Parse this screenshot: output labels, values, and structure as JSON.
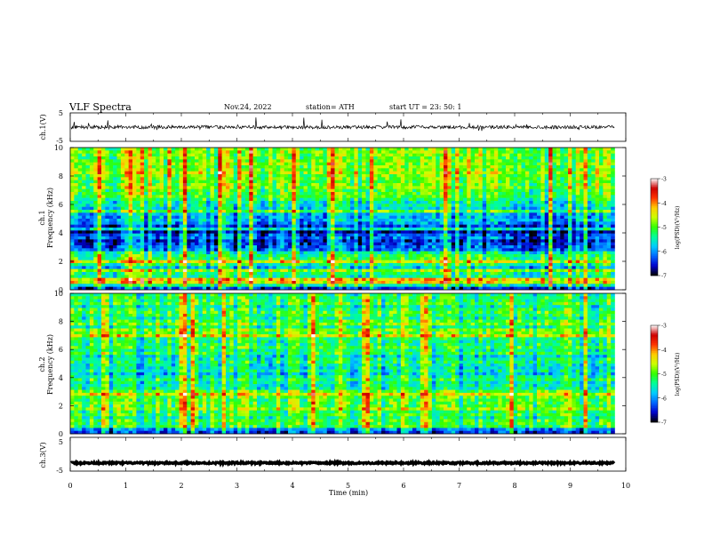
{
  "header": {
    "title": "VLF  Spectra",
    "date": "Nov.24, 2022",
    "station": "station= ATH",
    "start": "start  UT  =    23: 50: 1"
  },
  "chart_data": [
    {
      "type": "line",
      "name": "ch1-waveform",
      "ylabel": "ch.1(V)",
      "ylim": [
        -5,
        5
      ],
      "yticks": [
        "5",
        "-5"
      ],
      "xlim": [
        0,
        10
      ],
      "series_end_min": 9.8,
      "baseline": 0,
      "noise_amplitude": 0.6,
      "spike_amplitude": 2.5
    },
    {
      "type": "heatmap",
      "name": "ch1-spectrogram",
      "ylabel_top": "ch.1",
      "ylabel": "Frequency (kHz)",
      "ylim": [
        0,
        10
      ],
      "yticks": [
        "0",
        "2",
        "4",
        "6",
        "8",
        "10"
      ],
      "xlim": [
        0,
        10
      ],
      "data_end_min": 9.8,
      "colorbar": {
        "label": "log(PSD)(V²/Hz)",
        "range": [
          -7,
          -3
        ],
        "ticks": [
          "-3",
          "-4",
          "-5",
          "-6",
          "-7"
        ]
      },
      "band_profile_khz": [
        {
          "f": 0.0,
          "level": -6.8
        },
        {
          "f": 0.5,
          "level": -5.0
        },
        {
          "f": 1.0,
          "level": -5.3
        },
        {
          "f": 1.5,
          "level": -6.0
        },
        {
          "f": 2.1,
          "level": -5.0
        },
        {
          "f": 3.0,
          "level": -6.3
        },
        {
          "f": 4.0,
          "level": -6.5
        },
        {
          "f": 5.0,
          "level": -6.0
        },
        {
          "f": 6.0,
          "level": -5.5
        },
        {
          "f": 7.0,
          "level": -5.0
        },
        {
          "f": 8.5,
          "level": -4.8
        },
        {
          "f": 10.0,
          "level": -4.8
        }
      ]
    },
    {
      "type": "heatmap",
      "name": "ch2-spectrogram",
      "ylabel_top": "ch.2",
      "ylabel": "Frequency (kHz)",
      "ylim": [
        0,
        10
      ],
      "yticks": [
        "0",
        "2",
        "4",
        "6",
        "8",
        "10"
      ],
      "xlim": [
        0,
        10
      ],
      "data_end_min": 9.8,
      "colorbar": {
        "label": "log(PSD)(V²/Hz)",
        "range": [
          -7,
          -3
        ],
        "ticks": [
          "-3",
          "-4",
          "-5",
          "-6",
          "-7"
        ]
      },
      "band_profile_khz": [
        {
          "f": 0.0,
          "level": -6.8
        },
        {
          "f": 0.5,
          "level": -5.2
        },
        {
          "f": 1.2,
          "level": -5.3
        },
        {
          "f": 2.0,
          "level": -4.8
        },
        {
          "f": 3.0,
          "level": -5.2
        },
        {
          "f": 4.0,
          "level": -5.5
        },
        {
          "f": 5.0,
          "level": -5.6
        },
        {
          "f": 6.0,
          "level": -5.4
        },
        {
          "f": 7.0,
          "level": -5.0
        },
        {
          "f": 8.5,
          "level": -5.3
        },
        {
          "f": 10.0,
          "level": -5.4
        }
      ]
    },
    {
      "type": "line",
      "name": "ch3-waveform",
      "ylabel": "ch.3(V)",
      "ylim": [
        -5,
        5
      ],
      "yticks": [
        "5",
        "-5"
      ],
      "xlim": [
        0,
        10
      ],
      "series_end_min": 9.8,
      "baseline": -2.6,
      "noise_amplitude": 0.25,
      "spike_amplitude": 0
    }
  ],
  "x_axis": {
    "label": "Time  (min)",
    "ticks": [
      "0",
      "1",
      "2",
      "3",
      "4",
      "5",
      "6",
      "7",
      "8",
      "9",
      "10"
    ]
  },
  "colors": {
    "trace": "#000000",
    "colormap": [
      "#000000",
      "#0000cc",
      "#0066ff",
      "#00ccff",
      "#00ff99",
      "#33ff00",
      "#ccff00",
      "#ffcc00",
      "#ff3300",
      "#cc0000",
      "#ffffff"
    ]
  }
}
